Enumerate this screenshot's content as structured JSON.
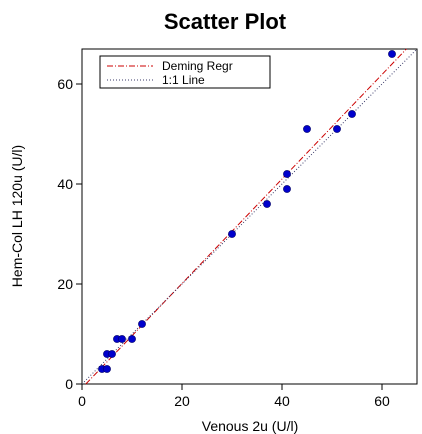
{
  "chart_data": {
    "type": "scatter",
    "title": "Scatter Plot",
    "xlabel": "Venous 2u (U/l)",
    "ylabel": "Hem-Col LH 120u (U/l)",
    "xlim": [
      0,
      67
    ],
    "ylim": [
      0,
      67
    ],
    "xticks": [
      0,
      20,
      40,
      60
    ],
    "yticks": [
      0,
      20,
      40,
      60
    ],
    "grid": false,
    "legend_position": "top-left",
    "point_color": "#0000cc",
    "points": [
      {
        "x": 4,
        "y": 3
      },
      {
        "x": 5,
        "y": 3
      },
      {
        "x": 5,
        "y": 6
      },
      {
        "x": 6,
        "y": 6
      },
      {
        "x": 7,
        "y": 9
      },
      {
        "x": 8,
        "y": 9
      },
      {
        "x": 10,
        "y": 9
      },
      {
        "x": 12,
        "y": 12
      },
      {
        "x": 30,
        "y": 30
      },
      {
        "x": 37,
        "y": 36
      },
      {
        "x": 41,
        "y": 39
      },
      {
        "x": 41,
        "y": 42
      },
      {
        "x": 45,
        "y": 51
      },
      {
        "x": 51,
        "y": 51
      },
      {
        "x": 54,
        "y": 54
      },
      {
        "x": 62,
        "y": 66
      }
    ],
    "lines": [
      {
        "name": "Deming Regr",
        "color": "#cc0000",
        "style": "dash-dot",
        "intercept": -0.8,
        "slope": 1.045
      },
      {
        "name": "1:1 Line",
        "color": "#3a3a6a",
        "style": "dotted",
        "intercept": 0,
        "slope": 1.0
      }
    ]
  }
}
